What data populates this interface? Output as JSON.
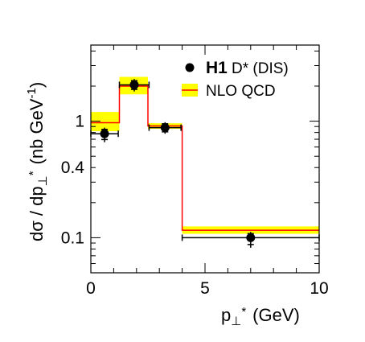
{
  "chart_data": {
    "type": "histogram",
    "x_axis": {
      "title_main": "p",
      "title_sub": "⊥",
      "title_sup": "*",
      "title_unit": "(GeV)",
      "range": [
        0,
        10
      ],
      "ticks": [
        0,
        5,
        10
      ],
      "tick_labels": [
        "0",
        "5",
        "10"
      ]
    },
    "y_axis": {
      "title_main": "dσ / dp",
      "title_sub": "⊥",
      "title_sup": "*",
      "title_unit_pre": "(nb GeV",
      "title_unit_sup": "-1",
      "title_unit_post": ")",
      "scale": "log",
      "range": [
        0.05,
        4.5
      ],
      "ticks": [
        0.1,
        0.4,
        1
      ],
      "tick_labels": [
        "0.1",
        "0.4",
        "1"
      ]
    },
    "legend": {
      "position": "top-right",
      "data_bold": "H1",
      "data_label": "D* (DIS)",
      "theory_label": "NLO QCD"
    },
    "data_points": [
      {
        "x": 0.6,
        "y": 0.78,
        "x_err": 0.6,
        "y_up": 0.1,
        "y_down": 0.12
      },
      {
        "x": 1.9,
        "y": 2.05,
        "x_err": 0.65,
        "y_up": 0.25,
        "y_down": 0.25
      },
      {
        "x": 3.25,
        "y": 0.88,
        "x_err": 0.7,
        "y_up": 0.1,
        "y_down": 0.1
      },
      {
        "x": 7.0,
        "y": 0.1,
        "x_err": 3.0,
        "y_up": 0.012,
        "y_down": 0.018
      }
    ],
    "nlo_qcd": [
      {
        "x_low": 0.0,
        "x_high": 1.25,
        "central": 0.97,
        "low": 0.82,
        "high": 1.2
      },
      {
        "x_low": 1.25,
        "x_high": 2.5,
        "central": 2.0,
        "low": 1.7,
        "high": 2.4
      },
      {
        "x_low": 2.5,
        "x_high": 4.0,
        "central": 0.91,
        "low": 0.86,
        "high": 0.96
      },
      {
        "x_low": 4.0,
        "x_high": 10.0,
        "central": 0.116,
        "low": 0.108,
        "high": 0.125
      }
    ],
    "colors": {
      "band": "#ffff00",
      "line": "#ff0000",
      "points": "#000000"
    }
  }
}
